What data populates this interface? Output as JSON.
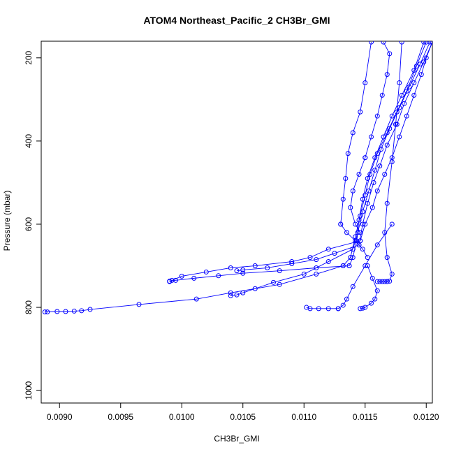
{
  "chart_data": {
    "type": "line",
    "title": "ATOM4 Northeast_Pacific_2 CH3Br_GMI",
    "xlabel": "CH3Br_GMI",
    "ylabel": "Pressure (mbar)",
    "xlim": [
      0.00885,
      0.01205
    ],
    "ylim": [
      1030,
      160
    ],
    "y_inverted": true,
    "grid": false,
    "legend": "none",
    "x_ticks": [
      0.009,
      0.0095,
      0.01,
      0.0105,
      0.011,
      0.0115,
      0.012
    ],
    "x_tick_labels": [
      "0.0090",
      "0.0095",
      "0.0100",
      "0.0105",
      "0.0110",
      "0.0115",
      "0.0120"
    ],
    "y_ticks": [
      200,
      400,
      600,
      800,
      1000
    ],
    "y_tick_labels": [
      "200",
      "400",
      "600",
      "800",
      "1000"
    ],
    "color": "#0000ff",
    "marker": "open-circle",
    "series": [
      {
        "x": [
          0.01205,
          0.012,
          0.01196,
          0.0119,
          0.01184,
          0.01178,
          0.01172,
          0.01166,
          0.0116,
          0.01156,
          0.0115,
          0.01146
        ],
        "y": [
          162,
          200,
          240,
          290,
          340,
          390,
          440,
          480,
          520,
          560,
          600,
          640
        ]
      },
      {
        "x": [
          0.01146,
          0.0112,
          0.01105,
          0.0109,
          0.0106,
          0.0104,
          0.0102,
          0.01,
          0.00992,
          0.0099
        ],
        "y": [
          640,
          660,
          680,
          690,
          700,
          705,
          715,
          725,
          735,
          738
        ]
      },
      {
        "x": [
          0.01205,
          0.01198,
          0.0119,
          0.01182,
          0.01176,
          0.01168,
          0.01162,
          0.01157,
          0.01152,
          0.01148,
          0.01145
        ],
        "y": [
          162,
          210,
          260,
          310,
          360,
          410,
          460,
          500,
          550,
          600,
          650
        ]
      },
      {
        "x": [
          0.01145,
          0.01125,
          0.0111,
          0.0109,
          0.0107,
          0.0105,
          0.01045
        ],
        "y": [
          650,
          670,
          685,
          695,
          705,
          710,
          712
        ]
      },
      {
        "x": [
          0.01203,
          0.01195,
          0.01186,
          0.01178,
          0.0117,
          0.01163,
          0.01158,
          0.01153,
          0.01148,
          0.01144,
          0.0114
        ],
        "y": [
          162,
          215,
          270,
          320,
          370,
          420,
          470,
          520,
          570,
          620,
          660
        ]
      },
      {
        "x": [
          0.0114,
          0.0112,
          0.011,
          0.01075,
          0.0106,
          0.0105,
          0.01045,
          0.0104
        ],
        "y": [
          660,
          690,
          720,
          740,
          755,
          765,
          770,
          772
        ]
      },
      {
        "x": [
          0.012,
          0.01192,
          0.01184,
          0.01176,
          0.01168,
          0.0116,
          0.01154,
          0.0115,
          0.01146,
          0.01142,
          0.01138,
          0.01132
        ],
        "y": [
          162,
          220,
          280,
          330,
          380,
          430,
          480,
          530,
          580,
          630,
          680,
          700
        ]
      },
      {
        "x": [
          0.01132,
          0.0111,
          0.0108,
          0.0104,
          0.01012,
          0.00965,
          0.00925,
          0.00918,
          0.00912,
          0.00905,
          0.00898,
          0.0089,
          0.00888
        ],
        "y": [
          700,
          720,
          745,
          765,
          780,
          793,
          805,
          808,
          809,
          810,
          810,
          811,
          811
        ]
      },
      {
        "x": [
          0.01198,
          0.0119,
          0.0118,
          0.01172,
          0.01165,
          0.01158,
          0.01152,
          0.01148,
          0.01145,
          0.01143,
          0.0114,
          0.01137
        ],
        "y": [
          162,
          230,
          290,
          340,
          390,
          440,
          490,
          540,
          590,
          640,
          680,
          700
        ]
      },
      {
        "x": [
          0.01137,
          0.0111,
          0.0108,
          0.0105,
          0.0103,
          0.0101,
          0.00995,
          0.0099
        ],
        "y": [
          700,
          705,
          712,
          718,
          724,
          730,
          735,
          737
        ]
      },
      {
        "x": [
          0.0118,
          0.01178,
          0.01175,
          0.01172,
          0.01168,
          0.01166,
          0.01168,
          0.01172,
          0.0117,
          0.01168
        ],
        "y": [
          162,
          260,
          360,
          450,
          550,
          620,
          680,
          720,
          737,
          738
        ]
      },
      {
        "x": [
          0.01168,
          0.01166,
          0.01164,
          0.01162,
          0.0116
        ],
        "y": [
          738,
          738,
          738,
          738,
          738
        ]
      },
      {
        "x": [
          0.01172,
          0.0116,
          0.0115,
          0.0114,
          0.01135,
          0.01132,
          0.01128
        ],
        "y": [
          600,
          650,
          700,
          750,
          780,
          795,
          803
        ]
      },
      {
        "x": [
          0.01128,
          0.0112,
          0.01112,
          0.01105,
          0.01102
        ],
        "y": [
          803,
          803,
          803,
          803,
          800
        ]
      },
      {
        "x": [
          0.01152,
          0.01156,
          0.0116,
          0.01158,
          0.01155,
          0.0115,
          0.01148,
          0.01146
        ],
        "y": [
          700,
          730,
          760,
          780,
          790,
          800,
          802,
          803
        ]
      },
      {
        "x": [
          0.01165,
          0.0117,
          0.01168,
          0.01164,
          0.0116,
          0.01155,
          0.0115
        ],
        "y": [
          162,
          190,
          240,
          290,
          340,
          390,
          440
        ]
      },
      {
        "x": [
          0.0115,
          0.01145,
          0.0114,
          0.01138,
          0.01142,
          0.01146
        ],
        "y": [
          440,
          480,
          520,
          560,
          600,
          620
        ]
      },
      {
        "x": [
          0.01155,
          0.0115,
          0.01146,
          0.0114,
          0.01136,
          0.01134,
          0.01132,
          0.0113
        ],
        "y": [
          162,
          260,
          330,
          380,
          430,
          490,
          540,
          600
        ]
      },
      {
        "x": [
          0.0113,
          0.01135,
          0.01142,
          0.01148,
          0.01152
        ],
        "y": [
          600,
          620,
          640,
          660,
          680
        ]
      }
    ]
  }
}
